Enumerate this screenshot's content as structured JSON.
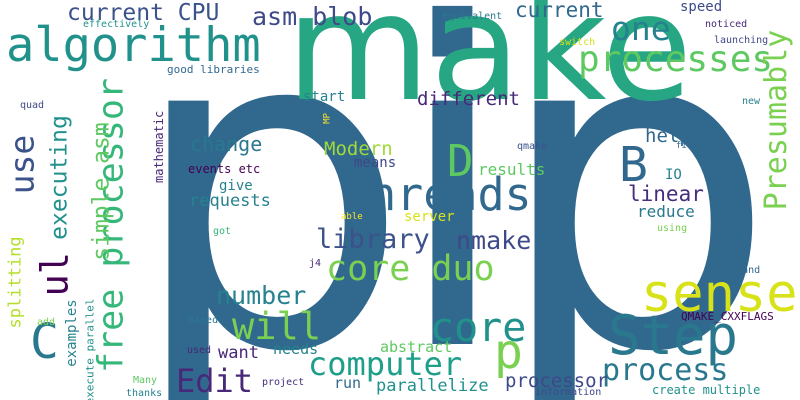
{
  "words": [
    {
      "text": "pip",
      "color": "#31688e"
    },
    {
      "text": "make",
      "color": "#26a682"
    },
    {
      "text": "algorithm",
      "color": "#21918c"
    },
    {
      "text": "threads",
      "color": "#31688e"
    },
    {
      "text": "processes",
      "color": "#5ec962"
    },
    {
      "text": "sense",
      "color": "#d8e219"
    },
    {
      "text": "Step",
      "color": "#2a788e"
    },
    {
      "text": "core duo",
      "color": "#7ad151"
    },
    {
      "text": "free processor",
      "color": "#35b779"
    },
    {
      "text": "Presumably",
      "color": "#7ad151"
    },
    {
      "text": "use",
      "color": "#3b528b"
    },
    {
      "text": "ul",
      "color": "#440154"
    },
    {
      "text": "C",
      "color": "#2a788e"
    },
    {
      "text": "B",
      "color": "#31688e"
    },
    {
      "text": "D",
      "color": "#5ec962"
    },
    {
      "text": "core",
      "color": "#21918c"
    },
    {
      "text": "p",
      "color": "#7ad151"
    },
    {
      "text": "will",
      "color": "#7ad151"
    },
    {
      "text": "Edit",
      "color": "#482878"
    },
    {
      "text": "computer",
      "color": "#1f9e89"
    },
    {
      "text": "process",
      "color": "#2a788e"
    },
    {
      "text": "one",
      "color": "#26828e"
    },
    {
      "text": "current CPU",
      "color": "#3b528b"
    },
    {
      "text": "asm blob",
      "color": "#3e4989"
    },
    {
      "text": "current",
      "color": "#31688e"
    },
    {
      "text": "library",
      "color": "#3b528b"
    },
    {
      "text": "nmake",
      "color": "#3e4989"
    },
    {
      "text": "number",
      "color": "#26828e"
    },
    {
      "text": "executing",
      "color": "#21918c"
    },
    {
      "text": "simple asm",
      "color": "#5ec962"
    },
    {
      "text": "different",
      "color": "#482878"
    },
    {
      "text": "change",
      "color": "#2a788e"
    },
    {
      "text": "Modern",
      "color": "#a0da39"
    },
    {
      "text": "linear",
      "color": "#472d7b"
    },
    {
      "text": "help",
      "color": "#31688e"
    },
    {
      "text": "reduce",
      "color": "#2a788e"
    },
    {
      "text": "IO",
      "color": "#26828e"
    },
    {
      "text": "results",
      "color": "#5ec962"
    },
    {
      "text": "means",
      "color": "#3e4989"
    },
    {
      "text": "give",
      "color": "#26828e"
    },
    {
      "text": "requests",
      "color": "#26828e"
    },
    {
      "text": "events etc",
      "color": "#440154"
    },
    {
      "text": "mathematic",
      "color": "#482878"
    },
    {
      "text": "start",
      "color": "#26828e"
    },
    {
      "text": "speed",
      "color": "#3e4989"
    },
    {
      "text": "server",
      "color": "#d8e219"
    },
    {
      "text": "splitting",
      "color": "#b5de2b"
    },
    {
      "text": "examples",
      "color": "#26828e"
    },
    {
      "text": "want",
      "color": "#482878"
    },
    {
      "text": "needs",
      "color": "#26828e"
    },
    {
      "text": "abstract",
      "color": "#5ec962"
    },
    {
      "text": "run",
      "color": "#31688e"
    },
    {
      "text": "parallelize",
      "color": "#21918c"
    },
    {
      "text": "processor",
      "color": "#3e4989"
    },
    {
      "text": "create multiple",
      "color": "#21918c"
    },
    {
      "text": "execute parallel",
      "color": "#21918c"
    },
    {
      "text": "good libraries",
      "color": "#31688e"
    },
    {
      "text": "effectively",
      "color": "#21918c"
    },
    {
      "text": "equivalent",
      "color": "#2a788e"
    },
    {
      "text": "launching",
      "color": "#3e4989"
    },
    {
      "text": "noticed",
      "color": "#482878"
    },
    {
      "text": "switch",
      "color": "#d8e219"
    },
    {
      "text": "quad",
      "color": "#3e4989"
    },
    {
      "text": "new",
      "color": "#26828e"
    },
    {
      "text": "MP",
      "color": "#fde725"
    },
    {
      "text": "qmake",
      "color": "#3b528b"
    },
    {
      "text": "file",
      "color": "#31688e"
    },
    {
      "text": "able",
      "color": "#fde725"
    },
    {
      "text": "got",
      "color": "#35b779"
    },
    {
      "text": "using",
      "color": "#7ad151"
    },
    {
      "text": "j4",
      "color": "#482878"
    },
    {
      "text": "command",
      "color": "#31688e"
    },
    {
      "text": "QMAKE_CXXFLAGS",
      "color": "#440154"
    },
    {
      "text": "add",
      "color": "#7ad151"
    },
    {
      "text": "Based",
      "color": "#2a788e"
    },
    {
      "text": "used",
      "color": "#482878"
    },
    {
      "text": "Many",
      "color": "#5ec962"
    },
    {
      "text": "thanks",
      "color": "#26828e"
    },
    {
      "text": "project",
      "color": "#472d7b"
    },
    {
      "text": "information",
      "color": "#3e4989"
    }
  ]
}
